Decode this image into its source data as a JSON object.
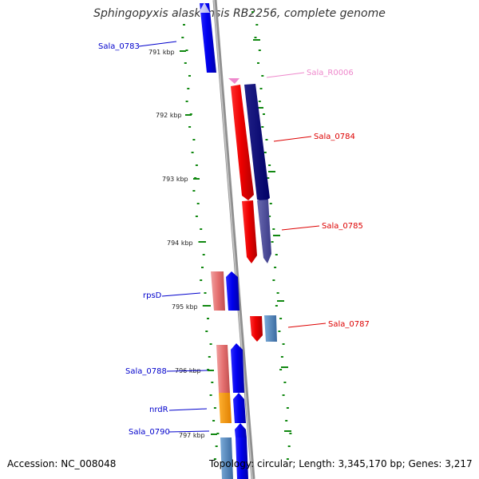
{
  "title": "Sphingopyxis alaskensis RB2256, complete genome",
  "accession": "Accession: NC_008048",
  "topology": "Topology: circular; Length: 3,345,170 bp; Genes: 3,217",
  "ticks": [
    "791 kbp",
    "792 kbp",
    "793 kbp",
    "794 kbp",
    "795 kbp",
    "796 kbp",
    "797 kbp"
  ],
  "genes": [
    {
      "name": "Sala_0783",
      "color": "#0000cc"
    },
    {
      "name": "Sala_R0006",
      "color": "#ee88cc"
    },
    {
      "name": "Sala_0784",
      "color": "#dd0000"
    },
    {
      "name": "Sala_0785",
      "color": "#dd0000"
    },
    {
      "name": "rpsD",
      "color": "#0000cc"
    },
    {
      "name": "Sala_0787",
      "color": "#dd0000"
    },
    {
      "name": "Sala_0788",
      "color": "#0000cc"
    },
    {
      "name": "nrdR",
      "color": "#0000cc"
    },
    {
      "name": "Sala_0790",
      "color": "#0000cc"
    }
  ]
}
